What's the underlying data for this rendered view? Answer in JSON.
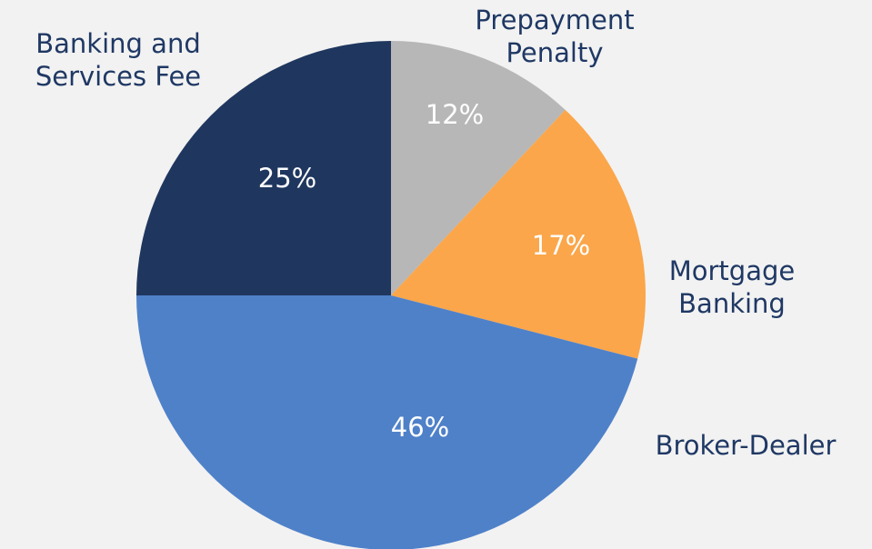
{
  "chart_data": {
    "type": "pie",
    "categories": [
      "Prepayment\nPenalty",
      "Mortgage\nBanking",
      "Broker-Dealer",
      "Banking and\nServices Fee"
    ],
    "values": [
      12,
      17,
      46,
      25
    ],
    "value_labels": [
      "12%",
      "17%",
      "46%",
      "25%"
    ],
    "colors": [
      "#b7b7b7",
      "#fba64a",
      "#4f81c9",
      "#1f375f"
    ]
  }
}
